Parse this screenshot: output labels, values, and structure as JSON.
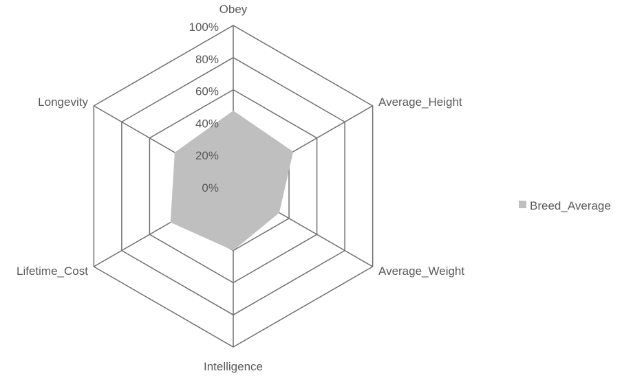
{
  "chart_data": {
    "type": "radar",
    "categories": [
      "Obey",
      "Average_Height",
      "Average_Weight",
      "Intelligence",
      "Lifetime_Cost",
      "Longevity"
    ],
    "series": [
      {
        "name": "Breed_Average",
        "values": [
          0.47,
          0.43,
          0.33,
          0.4,
          0.45,
          0.42
        ],
        "color": "#bfbfbf"
      }
    ],
    "rlim": [
      0,
      1
    ],
    "ticks": [
      "0%",
      "20%",
      "40%",
      "60%",
      "80%",
      "100%"
    ],
    "legend": "right",
    "grid": true
  }
}
